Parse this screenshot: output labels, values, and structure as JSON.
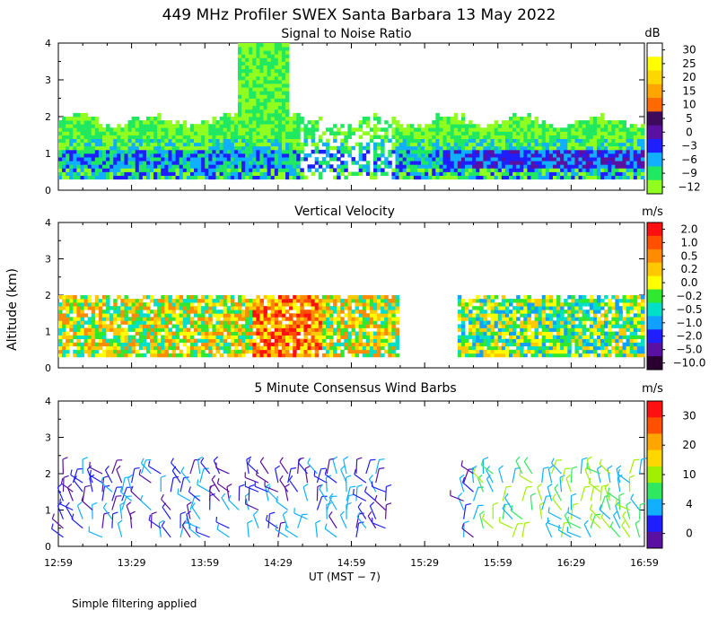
{
  "title": "449 MHz Profiler SWEX Santa Barbara 13 May 2022",
  "footnote": "Simple filtering applied",
  "chart_data": [
    {
      "type": "heatmap",
      "title": "Signal to Noise Ratio",
      "ylabel": "",
      "ylim": [
        0,
        4
      ],
      "yticks": [
        "0",
        "1",
        "2",
        "3",
        "4"
      ],
      "colorbar_unit": "dB",
      "colorbar_labels": [
        "30",
        "25",
        "20",
        "15",
        "10",
        "5",
        "0",
        "−3",
        "−6",
        "−9",
        "−12"
      ],
      "colors": [
        "#ffffff",
        "#ffff00",
        "#ffd700",
        "#ffa500",
        "#ff6a00",
        "#3d0a5c",
        "#5a10a0",
        "#1e1eff",
        "#10b0ff",
        "#20e860",
        "#90ff20"
      ]
    },
    {
      "type": "heatmap",
      "title": "Vertical Velocity",
      "ylabel": "Altitude (km)",
      "ylim": [
        0,
        4
      ],
      "yticks": [
        "0",
        "1",
        "2",
        "3",
        "4"
      ],
      "colorbar_unit": "m/s",
      "colorbar_labels": [
        "2.0",
        "1.0",
        "0.5",
        "0.2",
        "0.0",
        "−0.2",
        "−0.5",
        "−1.0",
        "−2.0",
        "−5.0",
        "−10.0"
      ],
      "colors": [
        "#ff1010",
        "#ff5000",
        "#ff8c00",
        "#ffc800",
        "#ffff00",
        "#30e830",
        "#00e0c8",
        "#10a0ff",
        "#1e1eff",
        "#5a10a0",
        "#2a0030"
      ]
    },
    {
      "type": "scatter",
      "title": "5 Minute Consensus Wind Barbs",
      "ylim": [
        0,
        4
      ],
      "yticks": [
        "0",
        "1",
        "2",
        "3",
        "4"
      ],
      "colorbar_unit": "m/s",
      "colorbar_labels": [
        "30",
        "20",
        "10",
        "4",
        "0"
      ],
      "colors": [
        "#ff1010",
        "#ff5000",
        "#ffa500",
        "#ffd700",
        "#a0f000",
        "#30e860",
        "#10b0ff",
        "#1e1eff",
        "#5a10a0"
      ]
    }
  ],
  "x_axis": {
    "label": "UT  (MST − 7)",
    "ticks": [
      "12:59",
      "13:29",
      "13:59",
      "14:29",
      "14:59",
      "15:29",
      "15:59",
      "16:29",
      "16:59"
    ]
  }
}
